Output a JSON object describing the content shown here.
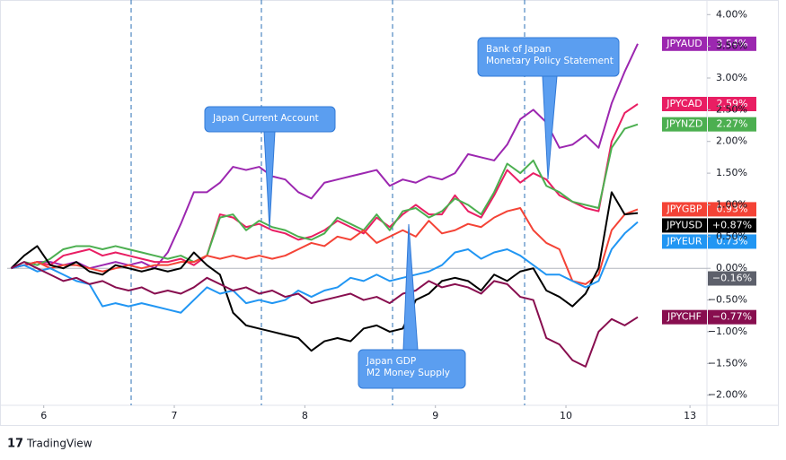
{
  "chart_data": {
    "type": "line",
    "brand": "TradingView",
    "xlim": [
      -0.3,
      53.3
    ],
    "xticks": [
      {
        "value": 2.5,
        "label": "6"
      },
      {
        "value": 12.5,
        "label": "7"
      },
      {
        "value": 22.5,
        "label": "8"
      },
      {
        "value": 32.5,
        "label": "9"
      },
      {
        "value": 42.5,
        "label": "10"
      },
      {
        "value": 52,
        "label": "13"
      }
    ],
    "ylim": [
      -2.16,
      4.23
    ],
    "yticks": [
      {
        "value": 4,
        "label": "4.00%"
      },
      {
        "value": 3.5,
        "label": "3.50%"
      },
      {
        "value": 3,
        "label": "3.00%"
      },
      {
        "value": 2.5,
        "label": "2.50%"
      },
      {
        "value": 2,
        "label": "2.00%"
      },
      {
        "value": 1.5,
        "label": "1.50%"
      },
      {
        "value": 1,
        "label": "1.00%"
      },
      {
        "value": 0.5,
        "label": "0.50%"
      },
      {
        "value": 0,
        "label": "0.00%"
      },
      {
        "value": -0.5,
        "label": "−0.50%"
      },
      {
        "value": -1,
        "label": "−1.00%"
      },
      {
        "value": -1.5,
        "label": "−1.50%"
      },
      {
        "value": -2,
        "label": "−2.00%"
      }
    ],
    "zero_line": true,
    "reference": {
      "value": -0.16,
      "label": "−0.16%",
      "color": "#5d606b"
    },
    "annotations": [
      {
        "lines": [
          "Japan Current Account"
        ]
      },
      {
        "lines": [
          "Japan GDP",
          "M2 Money Supply"
        ]
      },
      {
        "lines": [
          "Bank of Japan",
          "Monetary Policy Statement"
        ]
      }
    ],
    "series": [
      {
        "name": "JPYAUD",
        "color": "#9c27b0",
        "last_label": "3.54%",
        "values": [
          0.0,
          0.05,
          0.1,
          0.1,
          0.05,
          0.1,
          0.0,
          0.05,
          0.1,
          0.05,
          0.1,
          0.0,
          0.25,
          0.7,
          1.2,
          1.2,
          1.35,
          1.6,
          1.55,
          1.6,
          1.45,
          1.4,
          1.2,
          1.1,
          1.35,
          1.4,
          1.45,
          1.5,
          1.55,
          1.3,
          1.4,
          1.35,
          1.45,
          1.4,
          1.5,
          1.8,
          1.75,
          1.7,
          1.95,
          2.35,
          2.5,
          2.3,
          1.9,
          1.95,
          2.1,
          1.9,
          2.6,
          3.1,
          3.54
        ]
      },
      {
        "name": "JPYCAD",
        "color": "#e91e63",
        "last_label": "2.59%",
        "values": [
          0.0,
          0.05,
          0.1,
          0.05,
          0.2,
          0.25,
          0.3,
          0.2,
          0.25,
          0.2,
          0.15,
          0.1,
          0.1,
          0.15,
          0.05,
          0.2,
          0.85,
          0.8,
          0.65,
          0.7,
          0.6,
          0.55,
          0.45,
          0.5,
          0.6,
          0.75,
          0.65,
          0.55,
          0.8,
          0.65,
          0.85,
          1.0,
          0.85,
          0.85,
          1.15,
          0.9,
          0.8,
          1.15,
          1.55,
          1.35,
          1.5,
          1.4,
          1.15,
          1.05,
          0.95,
          0.9,
          2.0,
          2.45,
          2.59
        ]
      },
      {
        "name": "JPYNZD",
        "color": "#4caf50",
        "last_label": "2.27%",
        "values": [
          0.0,
          0.1,
          0.05,
          0.15,
          0.3,
          0.35,
          0.35,
          0.3,
          0.35,
          0.3,
          0.25,
          0.2,
          0.15,
          0.2,
          0.1,
          0.2,
          0.8,
          0.85,
          0.6,
          0.75,
          0.65,
          0.6,
          0.5,
          0.45,
          0.55,
          0.8,
          0.7,
          0.6,
          0.85,
          0.6,
          0.9,
          0.95,
          0.8,
          0.9,
          1.1,
          1.0,
          0.85,
          1.2,
          1.65,
          1.5,
          1.7,
          1.3,
          1.2,
          1.05,
          1.0,
          0.95,
          1.9,
          2.2,
          2.27
        ]
      },
      {
        "name": "JPYGBP",
        "color": "#f44336",
        "last_label": "0.93%",
        "values": [
          0.0,
          0.05,
          0.1,
          0.0,
          0.05,
          0.05,
          0.0,
          -0.05,
          0.0,
          0.05,
          0.0,
          0.05,
          0.05,
          0.1,
          0.1,
          0.2,
          0.15,
          0.2,
          0.15,
          0.2,
          0.15,
          0.2,
          0.3,
          0.4,
          0.35,
          0.5,
          0.45,
          0.6,
          0.4,
          0.5,
          0.6,
          0.5,
          0.75,
          0.55,
          0.6,
          0.7,
          0.65,
          0.8,
          0.9,
          0.95,
          0.6,
          0.4,
          0.3,
          -0.2,
          -0.25,
          -0.1,
          0.6,
          0.85,
          0.93
        ]
      },
      {
        "name": "JPYUSD",
        "color": "#000000",
        "last_label": "+0.87%",
        "values": [
          0.0,
          0.2,
          0.35,
          0.05,
          0.0,
          0.1,
          -0.05,
          -0.1,
          0.05,
          0.0,
          -0.05,
          0.0,
          -0.05,
          0.0,
          0.25,
          0.05,
          -0.1,
          -0.7,
          -0.9,
          -0.95,
          -1.0,
          -1.05,
          -1.1,
          -1.3,
          -1.15,
          -1.1,
          -1.15,
          -0.95,
          -0.9,
          -1.0,
          -0.95,
          -0.5,
          -0.4,
          -0.2,
          -0.15,
          -0.2,
          -0.35,
          -0.1,
          -0.2,
          -0.05,
          0.0,
          -0.35,
          -0.45,
          -0.6,
          -0.4,
          0.0,
          1.2,
          0.85,
          0.87
        ]
      },
      {
        "name": "JPYEUR",
        "color": "#2196f3",
        "last_label": "0.73%",
        "values": [
          0.0,
          0.05,
          -0.05,
          0.0,
          -0.1,
          -0.2,
          -0.25,
          -0.6,
          -0.55,
          -0.6,
          -0.55,
          -0.6,
          -0.65,
          -0.7,
          -0.5,
          -0.3,
          -0.4,
          -0.35,
          -0.55,
          -0.5,
          -0.55,
          -0.5,
          -0.35,
          -0.45,
          -0.35,
          -0.3,
          -0.15,
          -0.2,
          -0.1,
          -0.2,
          -0.15,
          -0.1,
          -0.05,
          0.05,
          0.25,
          0.3,
          0.15,
          0.25,
          0.3,
          0.2,
          0.05,
          -0.1,
          -0.1,
          -0.2,
          -0.3,
          -0.2,
          0.3,
          0.55,
          0.73
        ]
      },
      {
        "name": "JPYCHF",
        "color": "#880e4f",
        "last_label": "−0.77%",
        "values": [
          0.0,
          0.1,
          0.0,
          -0.1,
          -0.2,
          -0.15,
          -0.25,
          -0.2,
          -0.3,
          -0.35,
          -0.3,
          -0.4,
          -0.35,
          -0.4,
          -0.3,
          -0.15,
          -0.25,
          -0.35,
          -0.3,
          -0.4,
          -0.35,
          -0.45,
          -0.4,
          -0.55,
          -0.5,
          -0.45,
          -0.4,
          -0.5,
          -0.45,
          -0.55,
          -0.4,
          -0.35,
          -0.2,
          -0.3,
          -0.25,
          -0.3,
          -0.4,
          -0.2,
          -0.25,
          -0.45,
          -0.5,
          -1.1,
          -1.2,
          -1.45,
          -1.55,
          -1.0,
          -0.8,
          -0.9,
          -0.77
        ]
      }
    ]
  }
}
